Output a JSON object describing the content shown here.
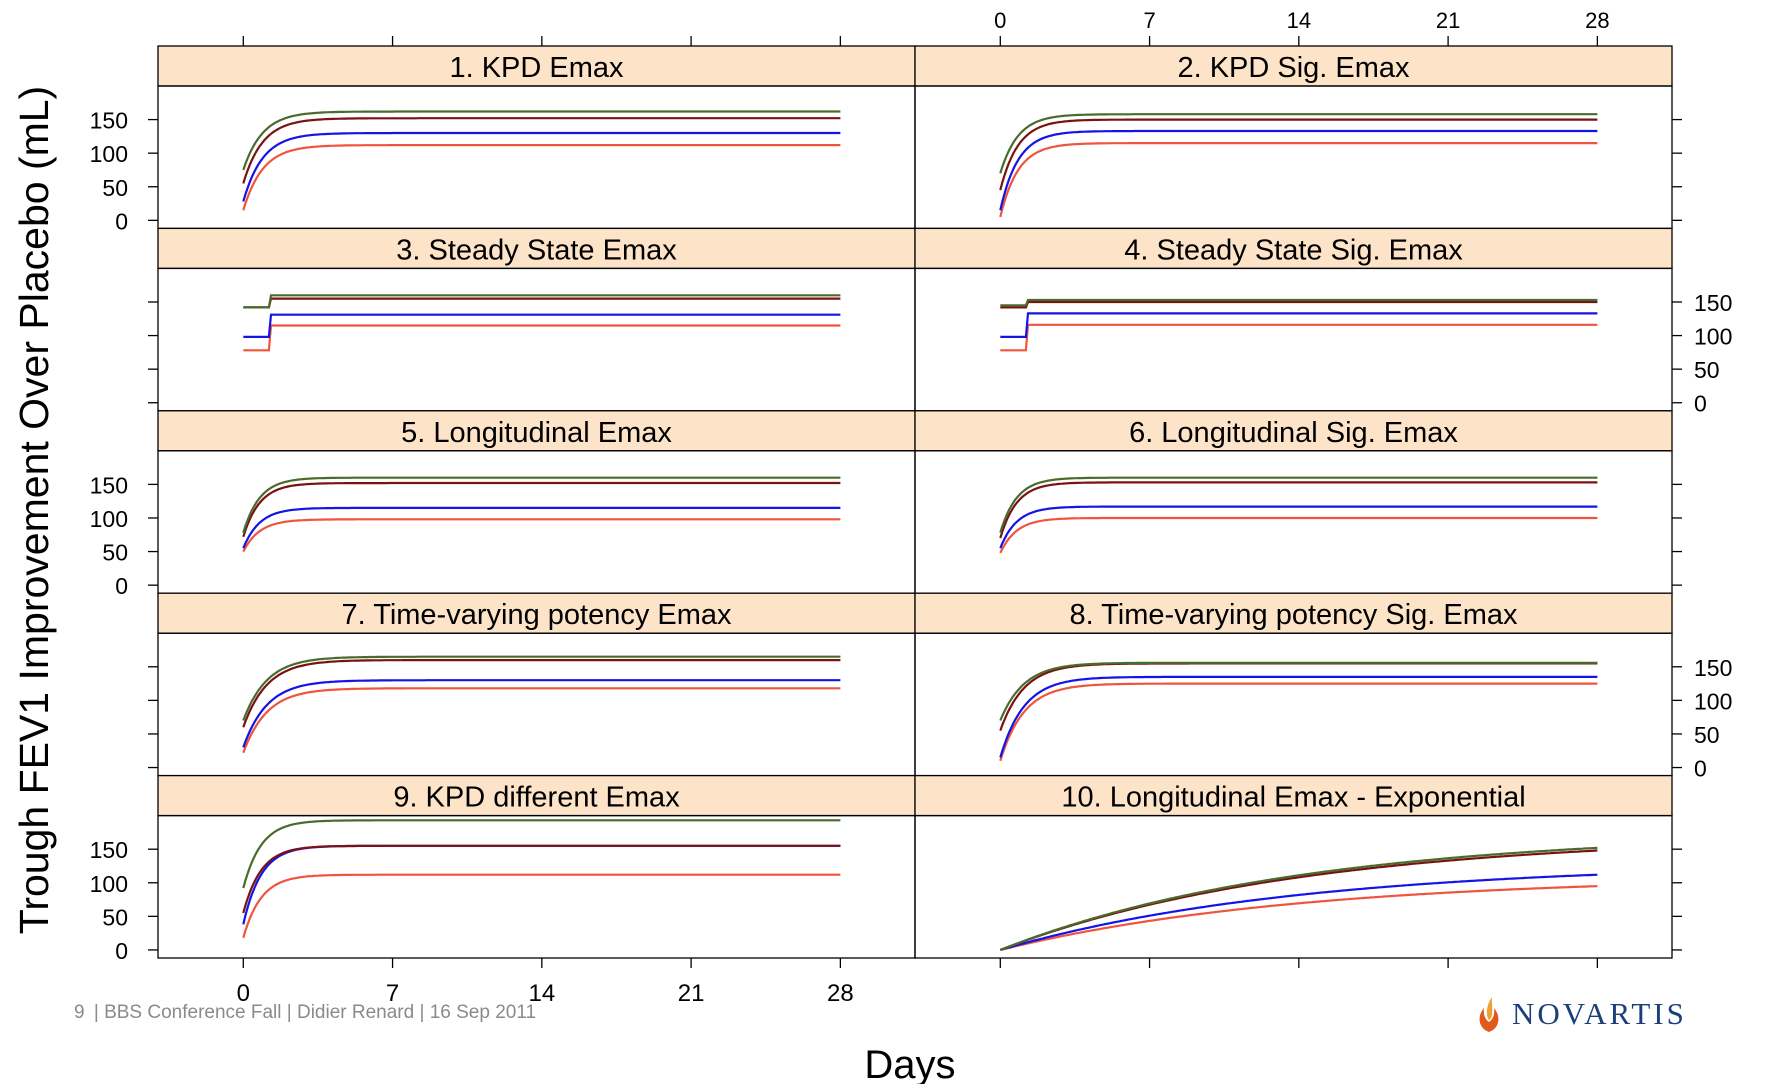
{
  "chart_data": {
    "type": "line",
    "title": "",
    "xlabel": "Days",
    "ylabel": "Trough FEV1 Improvement Over Placebo (mL)",
    "xlim": [
      -4,
      31.5
    ],
    "ylim": [
      -12,
      200
    ],
    "x_ticks": [
      0,
      7,
      14,
      21,
      28
    ],
    "y_ticks": [
      0,
      50,
      100,
      150
    ],
    "grid": false,
    "series_colors": [
      "#f0543c",
      "#1414e6",
      "#7a1212",
      "#4a6b2e"
    ],
    "panels": [
      {
        "title": "1. KPD Emax",
        "shape": "rise",
        "k": 1.1,
        "start": [
          15,
          28,
          55,
          75
        ],
        "end": [
          112,
          130,
          152,
          162
        ]
      },
      {
        "title": "2. KPD Sig. Emax",
        "shape": "rise",
        "k": 1.2,
        "start": [
          5,
          15,
          45,
          70
        ],
        "end": [
          115,
          133,
          150,
          158
        ]
      },
      {
        "title": "3. Steady State Emax",
        "shape": "step",
        "start": [
          78,
          98,
          142,
          142
        ],
        "end": [
          115,
          131,
          155,
          160
        ]
      },
      {
        "title": "4. Steady State Sig. Emax",
        "shape": "step",
        "start": [
          78,
          98,
          142,
          145
        ],
        "end": [
          116,
          133,
          150,
          153
        ]
      },
      {
        "title": "5. Longitudinal Emax",
        "shape": "rise",
        "k": 1.3,
        "start": [
          50,
          55,
          72,
          78
        ],
        "end": [
          98,
          115,
          152,
          160
        ]
      },
      {
        "title": "6. Longitudinal Sig. Emax",
        "shape": "rise",
        "k": 1.3,
        "start": [
          48,
          55,
          70,
          78
        ],
        "end": [
          100,
          117,
          153,
          160
        ]
      },
      {
        "title": "7. Time-varying potency Emax",
        "shape": "rise",
        "k": 0.9,
        "start": [
          22,
          30,
          60,
          70
        ],
        "end": [
          118,
          130,
          160,
          165
        ]
      },
      {
        "title": "8. Time-varying potency Sig. Emax",
        "shape": "rise",
        "k": 0.9,
        "start": [
          10,
          15,
          55,
          70
        ],
        "end": [
          125,
          135,
          155,
          156
        ]
      },
      {
        "title": "9. KPD different Emax",
        "shape": "rise",
        "k": 1.2,
        "start": [
          18,
          38,
          55,
          92
        ],
        "end": [
          112,
          155,
          155,
          193
        ]
      },
      {
        "title": "10. Longitudinal Emax - Exponential",
        "shape": "slow",
        "start": [
          0,
          0,
          0,
          0
        ],
        "end": [
          95,
          112,
          148,
          152
        ]
      }
    ]
  },
  "footer": {
    "page_number": "9",
    "text": "| BBS Conference Fall | Didier Renard | 16 Sep 2011"
  },
  "logo": {
    "text": "NOVARTIS",
    "colors": [
      "#e05a1c",
      "#f0a030"
    ]
  }
}
